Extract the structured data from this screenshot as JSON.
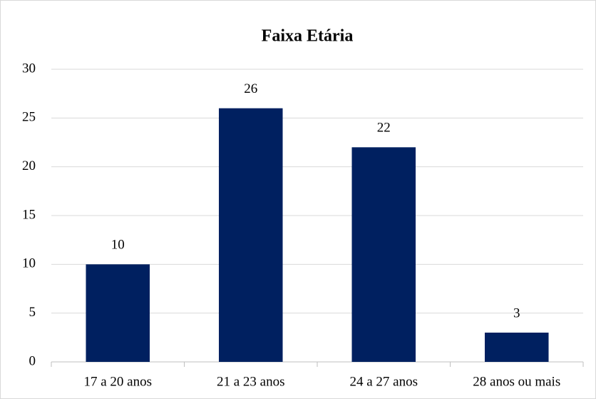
{
  "chart_data": {
    "type": "bar",
    "title": "Faixa Etária",
    "categories": [
      "17 a 20 anos",
      "21 a 23 anos",
      "24 a 27 anos",
      "28 anos ou mais"
    ],
    "values": [
      10,
      26,
      22,
      3
    ],
    "color": "#002060",
    "ylim": [
      0,
      30
    ],
    "yticks": [
      0,
      5,
      10,
      15,
      20,
      25,
      30
    ],
    "grid": true,
    "data_labels": true
  }
}
